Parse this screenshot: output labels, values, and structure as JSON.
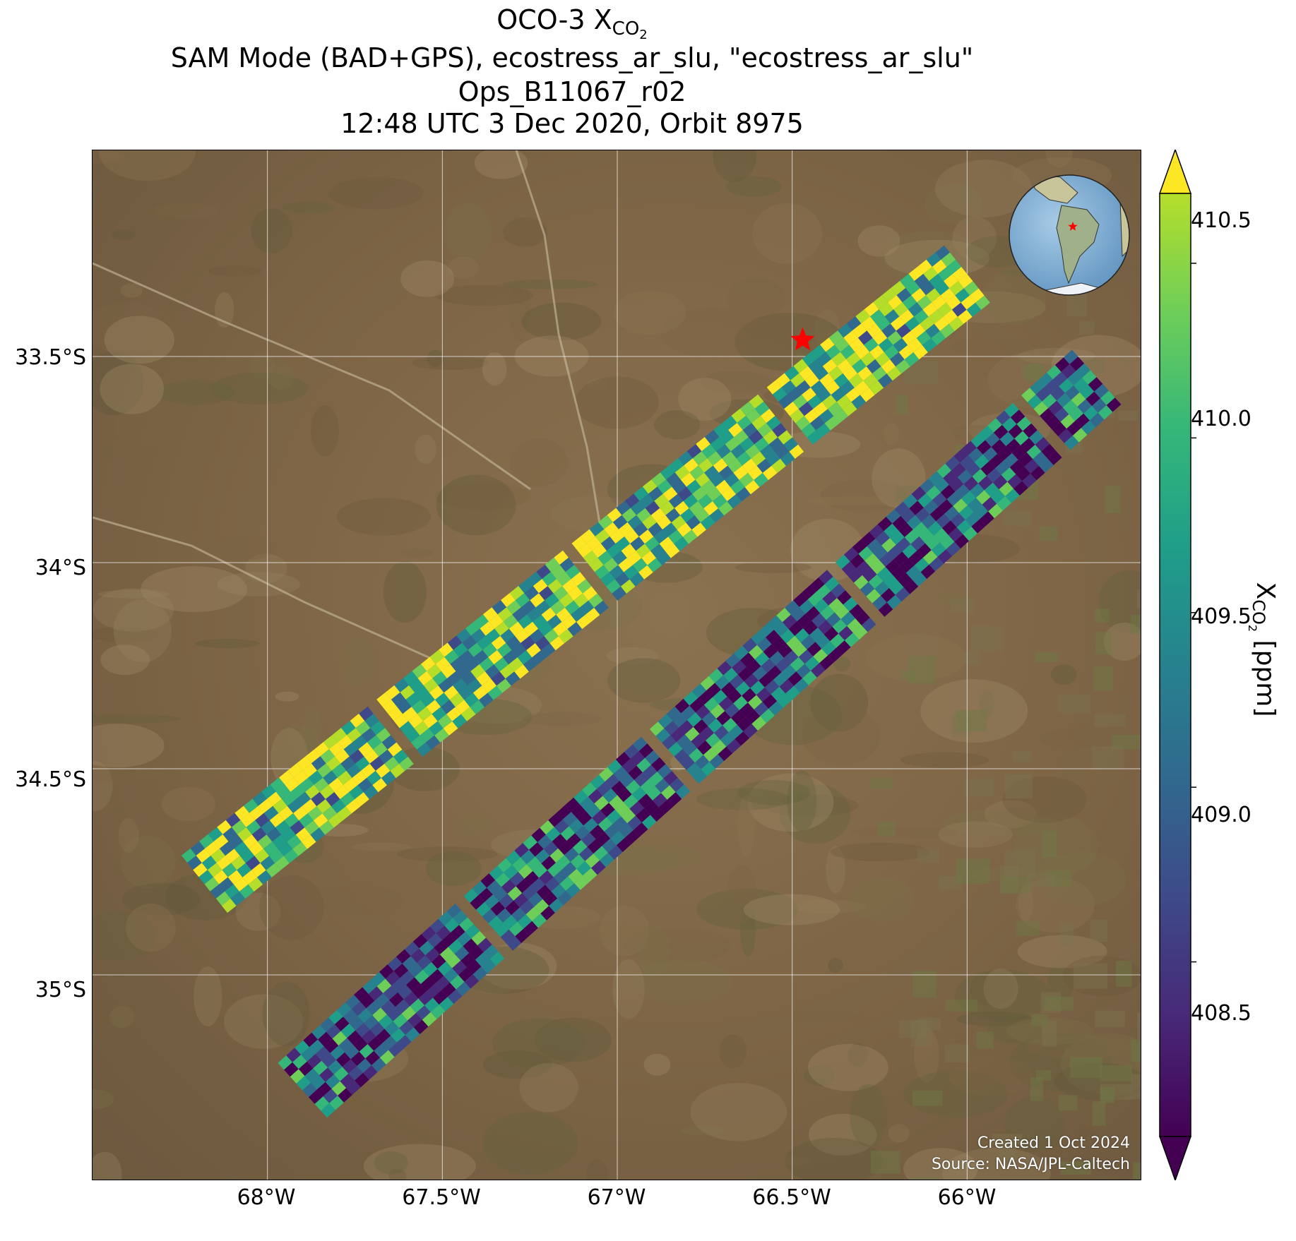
{
  "title": {
    "line1_prefix": "OCO-3 X",
    "line1_sub": "CO",
    "line1_subsub": "2",
    "line2": "SAM Mode (BAD+GPS), ecostress_ar_slu, \"ecostress_ar_slu\"",
    "line3": "Ops_B11067_r02",
    "line4": "12:48 UTC 3 Dec 2020, Orbit 8975"
  },
  "map": {
    "lon_range": [
      -68.5,
      -65.5
    ],
    "lat_range": [
      -35.5,
      -33.0
    ],
    "lon_ticks": [
      -68.0,
      -67.5,
      -67.0,
      -66.5,
      -66.0
    ],
    "lat_ticks": [
      -33.5,
      -34.0,
      -34.5,
      -35.0
    ],
    "lon_tick_labels": [
      "68°W",
      "67.5°W",
      "67°W",
      "66.5°W",
      "66°W"
    ],
    "lat_tick_labels": [
      "33.5°S",
      "34°S",
      "34.5°S",
      "35°S"
    ],
    "grid": true,
    "target_marker": {
      "lon": -66.47,
      "lat": -33.46,
      "color": "#ff0000",
      "shape": "star"
    },
    "background": "satellite imagery",
    "inset": {
      "type": "globe",
      "marker_color": "#ff0000"
    }
  },
  "chart_data": {
    "type": "heatmap",
    "variable_prefix": "X",
    "variable_sub": "CO",
    "variable_subsub": "2",
    "unit": "[ppm]",
    "colormap": "viridis",
    "vmin": 408.0,
    "vmax": 410.7,
    "colorbar_ticks": [
      410.5,
      410.0,
      409.5,
      409.0,
      408.5
    ],
    "colorbar_tick_labels": [
      "410.5",
      "410.0",
      "409.5",
      "409.0",
      "408.5"
    ],
    "extend": "both",
    "swaths": [
      {
        "start": {
          "lon": -68.18,
          "lat": -34.78
        },
        "end": {
          "lon": -66.0,
          "lat": -33.3
        },
        "mean": 409.9
      },
      {
        "start": {
          "lon": -67.9,
          "lat": -35.28
        },
        "end": {
          "lon": -65.63,
          "lat": -33.55
        },
        "mean": 408.9
      }
    ]
  },
  "credits": {
    "created": "Created 1 Oct 2024",
    "source": "Source: NASA/JPL-Caltech"
  }
}
